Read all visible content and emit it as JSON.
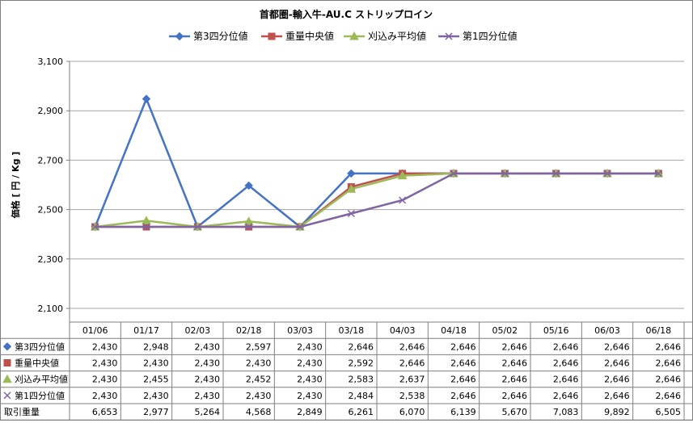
{
  "chart_data": {
    "type": "line",
    "title": "首都圏-輸入牛-AU.C ストリップロイン",
    "ylabel": "価格 [ 円 / Kg ]",
    "ylim": [
      2100,
      3100
    ],
    "yticks": [
      2100,
      2300,
      2500,
      2700,
      2900,
      3100
    ],
    "ytick_labels": [
      "2,100",
      "2,300",
      "2,500",
      "2,700",
      "2,900",
      "3,100"
    ],
    "grid": "horizontal",
    "legend": "top",
    "categories": [
      "01/06",
      "01/17",
      "02/03",
      "02/18",
      "03/03",
      "03/18",
      "04/03",
      "04/18",
      "05/02",
      "05/16",
      "06/03",
      "06/18"
    ],
    "series": [
      {
        "name": "第3四分位値",
        "color": "#4472c4",
        "marker": "diamond",
        "values": [
          2430,
          2948,
          2430,
          2597,
          2430,
          2646,
          2646,
          2646,
          2646,
          2646,
          2646,
          2646
        ],
        "labels": [
          "2,430",
          "2,948",
          "2,430",
          "2,597",
          "2,430",
          "2,646",
          "2,646",
          "2,646",
          "2,646",
          "2,646",
          "2,646",
          "2,646"
        ]
      },
      {
        "name": "重量中央値",
        "color": "#c0504d",
        "marker": "square",
        "values": [
          2430,
          2430,
          2430,
          2430,
          2430,
          2592,
          2646,
          2646,
          2646,
          2646,
          2646,
          2646
        ],
        "labels": [
          "2,430",
          "2,430",
          "2,430",
          "2,430",
          "2,430",
          "2,592",
          "2,646",
          "2,646",
          "2,646",
          "2,646",
          "2,646",
          "2,646"
        ]
      },
      {
        "name": "刈込み平均値",
        "color": "#9bbb59",
        "marker": "triangle",
        "values": [
          2430,
          2455,
          2430,
          2452,
          2430,
          2583,
          2637,
          2646,
          2646,
          2646,
          2646,
          2646
        ],
        "labels": [
          "2,430",
          "2,455",
          "2,430",
          "2,452",
          "2,430",
          "2,583",
          "2,637",
          "2,646",
          "2,646",
          "2,646",
          "2,646",
          "2,646"
        ]
      },
      {
        "name": "第1四分位値",
        "color": "#8064a2",
        "marker": "x",
        "values": [
          2430,
          2430,
          2430,
          2430,
          2430,
          2484,
          2538,
          2646,
          2646,
          2646,
          2646,
          2646
        ],
        "labels": [
          "2,430",
          "2,430",
          "2,430",
          "2,430",
          "2,430",
          "2,484",
          "2,538",
          "2,646",
          "2,646",
          "2,646",
          "2,646",
          "2,646"
        ]
      }
    ],
    "table_extra_rows": [
      {
        "name": "取引重量",
        "labels": [
          "6,653",
          "2,977",
          "5,264",
          "4,568",
          "2,849",
          "6,261",
          "6,070",
          "6,139",
          "5,670",
          "7,083",
          "9,892",
          "6,505"
        ]
      }
    ]
  }
}
